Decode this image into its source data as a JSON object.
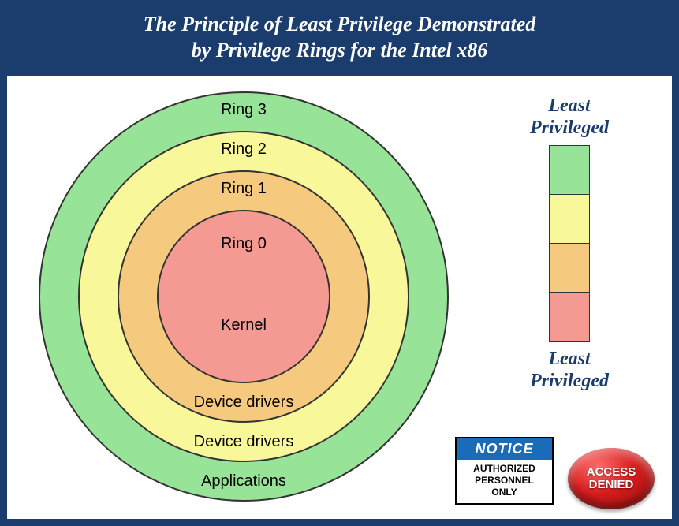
{
  "title": {
    "line1": "The Principle of Least Privilege Demonstrated",
    "line2": "by Privilege Rings for the Intel x86",
    "color": "#ffffff",
    "background": "#1a3d6d",
    "fontsize": 26
  },
  "rings": {
    "type": "concentric-rings",
    "border_color": "#333333",
    "label_fontsize": 20,
    "items": [
      {
        "name": "Ring 3",
        "diameter": 520,
        "fill": "#97e397",
        "top_label": "Ring 3",
        "bottom_label": "Applications"
      },
      {
        "name": "Ring 2",
        "diameter": 420,
        "fill": "#f8f89a",
        "top_label": "Ring 2",
        "bottom_label": "Device drivers"
      },
      {
        "name": "Ring 1",
        "diameter": 320,
        "fill": "#f5c97e",
        "top_label": "Ring 1",
        "bottom_label": "Device drivers"
      },
      {
        "name": "Ring 0",
        "diameter": 220,
        "fill": "#f59a92",
        "top_label": "Ring 0",
        "bottom_label": "Kernel"
      }
    ]
  },
  "legend": {
    "top_label_line1": "Least",
    "top_label_line2": "Privileged",
    "bottom_label_line1": "Least",
    "bottom_label_line2": "Privileged",
    "label_color": "#1a3d6d",
    "label_fontsize": 24,
    "segments": [
      {
        "color": "#97e397"
      },
      {
        "color": "#f8f89a"
      },
      {
        "color": "#f5c97e"
      },
      {
        "color": "#f59a92"
      }
    ]
  },
  "notice_sign": {
    "header": "NOTICE",
    "header_bg": "#1a6bb8",
    "body_line1": "AUTHORIZED",
    "body_line2": "PERSONNEL",
    "body_line3": "ONLY"
  },
  "access_denied": {
    "line1": "ACCESS",
    "line2": "DENIED",
    "base_color": "#d61c1c"
  }
}
